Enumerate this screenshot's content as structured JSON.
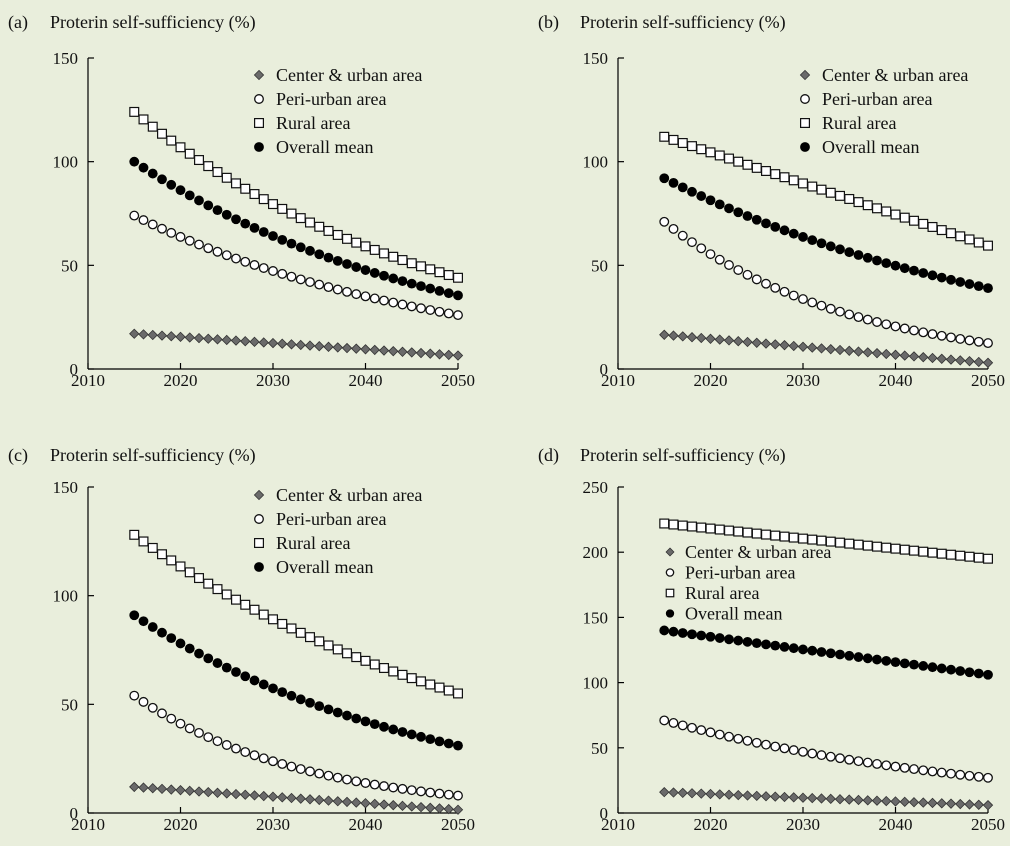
{
  "chart_data": [
    {
      "panel_label": "(a)",
      "title": "Proterin self-sufficiency (%)",
      "type": "scatter",
      "xlim": [
        2010,
        2050
      ],
      "ylim": [
        0,
        150
      ],
      "xticks": [
        2010,
        2020,
        2030,
        2040,
        2050
      ],
      "yticks": [
        0,
        50,
        100,
        150
      ],
      "legend_position": "top-right",
      "x_start": 2015,
      "x_end": 2050,
      "x_step": 1,
      "series": [
        {
          "name": "Center & urban area",
          "marker": "diamond",
          "start": 17,
          "end": 6.5,
          "curve": "linear"
        },
        {
          "name": "Peri-urban area",
          "marker": "open-circle",
          "start": 74,
          "end": 26,
          "curve": "exp"
        },
        {
          "name": "Rural area",
          "marker": "open-square",
          "start": 124,
          "end": 44,
          "curve": "exp"
        },
        {
          "name": "Overall mean",
          "marker": "filled-circle",
          "start": 100,
          "end": 35.5,
          "curve": "exp"
        }
      ]
    },
    {
      "panel_label": "(b)",
      "title": "Proterin self-sufficiency (%)",
      "type": "scatter",
      "xlim": [
        2010,
        2050
      ],
      "ylim": [
        0,
        150
      ],
      "xticks": [
        2010,
        2020,
        2030,
        2040,
        2050
      ],
      "yticks": [
        0,
        50,
        100,
        150
      ],
      "legend_position": "top-right",
      "x_start": 2015,
      "x_end": 2050,
      "x_step": 1,
      "series": [
        {
          "name": "Center & urban area",
          "marker": "diamond",
          "start": 16.5,
          "end": 3,
          "curve": "linear"
        },
        {
          "name": "Peri-urban area",
          "marker": "open-circle",
          "start": 71,
          "end": 12.5,
          "curve": "exp"
        },
        {
          "name": "Rural area",
          "marker": "open-square",
          "start": 112,
          "end": 59.5,
          "curve": "linear"
        },
        {
          "name": "Overall mean",
          "marker": "filled-circle",
          "start": 92,
          "end": 39,
          "curve": "exp"
        }
      ]
    },
    {
      "panel_label": "(c)",
      "title": "Proterin self-sufficiency (%)",
      "type": "scatter",
      "xlim": [
        2010,
        2050
      ],
      "ylim": [
        0,
        150
      ],
      "xticks": [
        2010,
        2020,
        2030,
        2040,
        2050
      ],
      "yticks": [
        0,
        50,
        100,
        150
      ],
      "legend_position": "top-right",
      "x_start": 2015,
      "x_end": 2050,
      "x_step": 1,
      "series": [
        {
          "name": "Center & urban area",
          "marker": "diamond",
          "start": 12,
          "end": 1.5,
          "curve": "linear"
        },
        {
          "name": "Peri-urban area",
          "marker": "open-circle",
          "start": 54,
          "end": 8,
          "curve": "exp"
        },
        {
          "name": "Rural area",
          "marker": "open-square",
          "start": 128,
          "end": 55,
          "curve": "exp"
        },
        {
          "name": "Overall mean",
          "marker": "filled-circle",
          "start": 91,
          "end": 31,
          "curve": "exp"
        }
      ]
    },
    {
      "panel_label": "(d)",
      "title": "Proterin self-sufficiency (%)",
      "type": "scatter",
      "xlim": [
        2010,
        2050
      ],
      "ylim": [
        0,
        250
      ],
      "xticks": [
        2010,
        2020,
        2030,
        2040,
        2050
      ],
      "yticks": [
        0,
        50,
        100,
        150,
        200,
        250
      ],
      "legend_position": "center-left",
      "x_start": 2015,
      "x_end": 2050,
      "x_step": 1,
      "series": [
        {
          "name": "Center & urban area",
          "marker": "diamond",
          "start": 16,
          "end": 6,
          "curve": "linear"
        },
        {
          "name": "Peri-urban area",
          "marker": "open-circle",
          "start": 71,
          "end": 27,
          "curve": "exp"
        },
        {
          "name": "Rural area",
          "marker": "open-square",
          "start": 222,
          "end": 195,
          "curve": "linear"
        },
        {
          "name": "Overall mean",
          "marker": "filled-circle",
          "start": 140,
          "end": 106,
          "curve": "linear"
        }
      ]
    }
  ]
}
